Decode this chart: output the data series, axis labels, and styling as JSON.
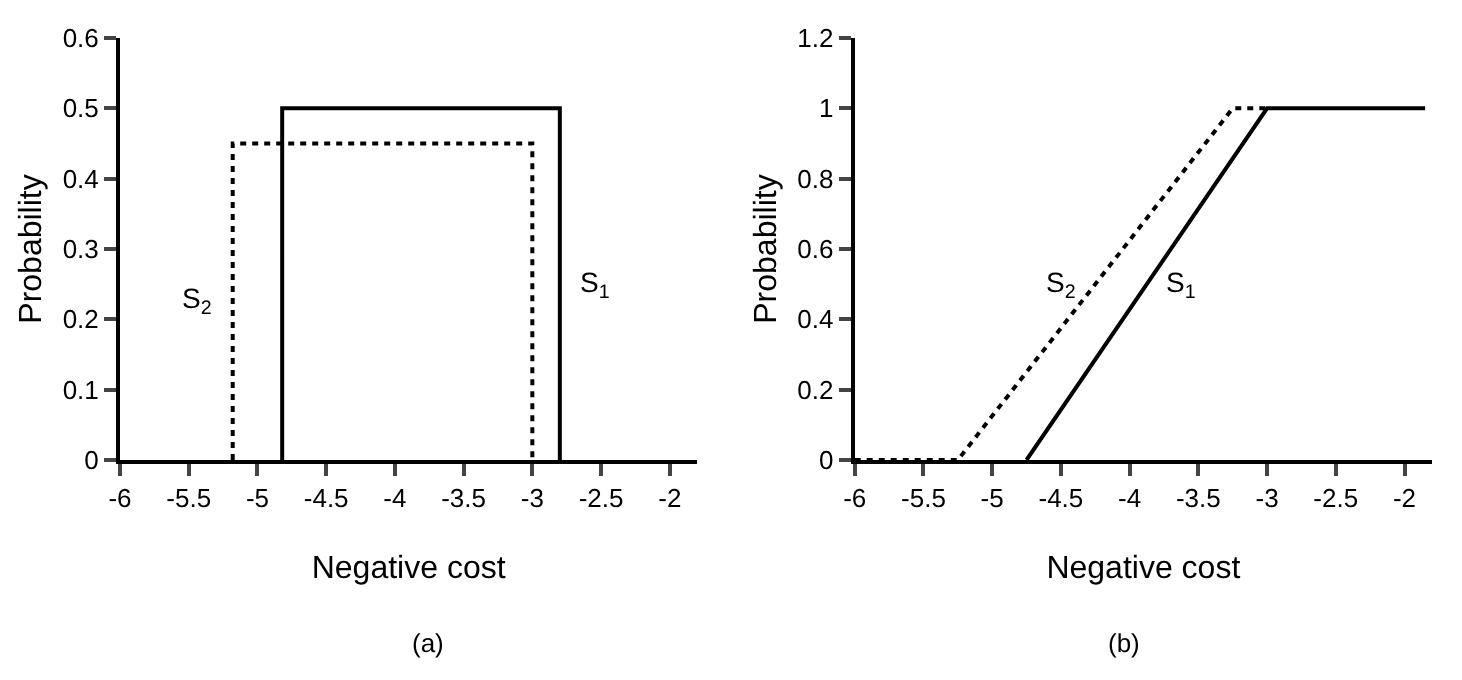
{
  "chart_data": [
    {
      "type": "line",
      "xlabel": "Negative cost",
      "ylabel": "Probability",
      "xlim": [
        -6,
        -1.8
      ],
      "ylim": [
        0,
        0.6
      ],
      "xticks": [
        -6,
        -5.5,
        -5,
        -4.5,
        -4,
        -3.5,
        -3,
        -2.5,
        -2
      ],
      "yticks": [
        0,
        0.1,
        0.2,
        0.3,
        0.4,
        0.5,
        0.6
      ],
      "grid": false,
      "legend": false,
      "marker": "none",
      "series": [
        {
          "name": "S$_{1}$",
          "color": "#000000",
          "line_style": "solid",
          "x": [
            -4.82,
            -4.82,
            -2.8,
            -2.8
          ],
          "values": [
            0,
            0.5,
            0.5,
            0
          ]
        },
        {
          "name": "S$_{2}$",
          "color": "#000000",
          "line_style": "dotted",
          "x": [
            -5.18,
            -5.18,
            -3.0,
            -3.0
          ],
          "values": [
            0,
            0.45,
            0.45,
            0
          ]
        }
      ],
      "annotations": [
        "(a)"
      ]
    },
    {
      "type": "line",
      "xlabel": "Negative cost",
      "ylabel": "Probability",
      "xlim": [
        -6,
        -1.8
      ],
      "ylim": [
        0,
        1.2
      ],
      "xticks": [
        -6,
        -5.5,
        -5,
        -4.5,
        -4,
        -3.5,
        -3,
        -2.5,
        -2
      ],
      "yticks": [
        0,
        0.2,
        0.4,
        0.6,
        0.8,
        1,
        1.2
      ],
      "grid": false,
      "legend": false,
      "marker": "none",
      "series": [
        {
          "name": "S$_{1}$",
          "color": "#000000",
          "line_style": "solid",
          "x": [
            -4.75,
            -3.0,
            -1.85
          ],
          "values": [
            0,
            1,
            1
          ]
        },
        {
          "name": "S$_{2}$",
          "color": "#000000",
          "line_style": "dotted",
          "x": [
            -6,
            -5.25,
            -3.25,
            -3.0
          ],
          "values": [
            0,
            0,
            1,
            1
          ]
        }
      ],
      "annotations": [
        "(b)"
      ]
    }
  ]
}
